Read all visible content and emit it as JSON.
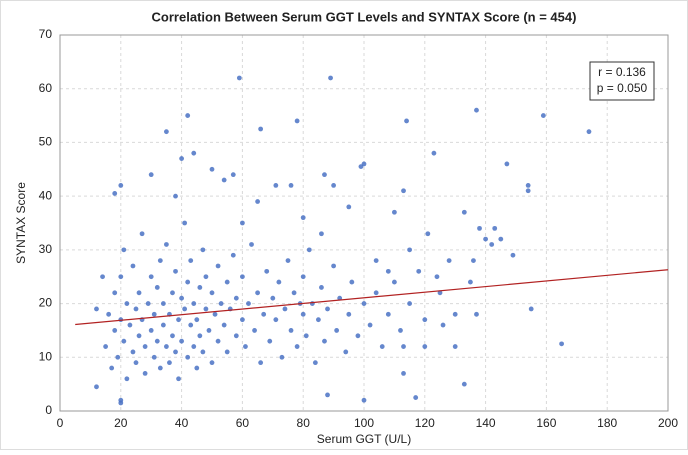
{
  "chart_data": {
    "type": "scatter",
    "title": "Correlation Between Serum GGT Levels and SYNTAX Score (n = 454)",
    "x_label": "Serum GGT (U/L)",
    "y_label": "SYNTAX Score",
    "xlim": [
      0,
      200
    ],
    "ylim": [
      0,
      70
    ],
    "xticks": [
      0,
      20,
      40,
      60,
      80,
      100,
      120,
      140,
      160,
      180,
      200
    ],
    "yticks": [
      0,
      10,
      20,
      30,
      40,
      50,
      60,
      70
    ],
    "grid": true,
    "annotations": [
      "r = 0.136",
      "p = 0.050"
    ],
    "trendline": {
      "x": [
        5,
        200
      ],
      "y": [
        16.1,
        26.3
      ],
      "color": "#b22222"
    },
    "series": [
      {
        "color": "#4a72c4",
        "x": [
          59,
          89,
          42,
          78,
          114,
          137,
          159,
          174,
          35,
          66,
          123,
          147,
          154,
          154,
          100,
          99,
          44,
          30,
          20,
          18,
          87,
          90,
          110,
          113,
          133,
          138,
          140,
          143,
          149,
          136,
          137,
          155,
          165,
          133,
          117,
          130,
          126,
          121,
          124,
          113,
          108,
          100,
          88,
          20,
          20,
          12,
          14,
          12,
          145,
          115,
          120,
          113,
          104,
          86,
          76,
          71,
          57,
          54,
          50,
          40,
          38,
          65,
          80,
          95,
          60,
          15,
          16,
          17,
          18,
          18,
          19,
          20,
          20,
          21,
          21,
          22,
          22,
          23,
          24,
          24,
          25,
          25,
          26,
          26,
          27,
          27,
          28,
          28,
          29,
          30,
          30,
          31,
          31,
          32,
          32,
          33,
          33,
          34,
          34,
          35,
          35,
          36,
          36,
          37,
          37,
          38,
          38,
          39,
          39,
          40,
          40,
          41,
          41,
          42,
          42,
          43,
          43,
          44,
          44,
          45,
          45,
          46,
          46,
          47,
          47,
          48,
          48,
          49,
          50,
          50,
          51,
          52,
          52,
          53,
          54,
          55,
          55,
          56,
          57,
          58,
          58,
          60,
          60,
          61,
          62,
          63,
          64,
          65,
          66,
          67,
          68,
          69,
          70,
          71,
          72,
          73,
          74,
          75,
          76,
          77,
          78,
          79,
          80,
          80,
          81,
          82,
          83,
          84,
          85,
          86,
          87,
          88,
          90,
          91,
          92,
          94,
          95,
          96,
          98,
          100,
          102,
          104,
          106,
          108,
          110,
          112,
          115,
          118,
          120,
          125,
          130,
          135,
          142,
          128
        ],
        "values": [
          62,
          62,
          55,
          54,
          54,
          56,
          55,
          52,
          52,
          52.5,
          48,
          46,
          42,
          41,
          46,
          45.5,
          48,
          44,
          42,
          40.5,
          44,
          42,
          37,
          41,
          37,
          34,
          32,
          34,
          29,
          28,
          18,
          19,
          12.5,
          5,
          2.5,
          12,
          16,
          33,
          25,
          7,
          26,
          2,
          3,
          2,
          1.5,
          4.5,
          25,
          19,
          32,
          30,
          17,
          12,
          28,
          33,
          42,
          42,
          44,
          43,
          45,
          47,
          40,
          39,
          36,
          38,
          35,
          12,
          18,
          8,
          22,
          15,
          10,
          25,
          17,
          13,
          30,
          6,
          20,
          16,
          11,
          27,
          19,
          9,
          14,
          22,
          33,
          17,
          12,
          7,
          20,
          15,
          25,
          10,
          18,
          23,
          13,
          28,
          8,
          16,
          20,
          12,
          31,
          18,
          9,
          22,
          14,
          26,
          11,
          17,
          6,
          21,
          13,
          19,
          35,
          10,
          24,
          16,
          28,
          12,
          20,
          8,
          17,
          23,
          14,
          30,
          11,
          19,
          25,
          15,
          22,
          9,
          18,
          27,
          13,
          20,
          16,
          11,
          24,
          19,
          29,
          14,
          21,
          17,
          25,
          12,
          20,
          31,
          15,
          22,
          9,
          18,
          26,
          13,
          21,
          17,
          24,
          10,
          19,
          28,
          15,
          22,
          12,
          20,
          18,
          25,
          14,
          30,
          20,
          9,
          17,
          23,
          13,
          19,
          27,
          15,
          21,
          11,
          18,
          24,
          14,
          20,
          16,
          22,
          12,
          18,
          24,
          15,
          20,
          26,
          12,
          22,
          18,
          24,
          31,
          28
        ]
      }
    ]
  }
}
